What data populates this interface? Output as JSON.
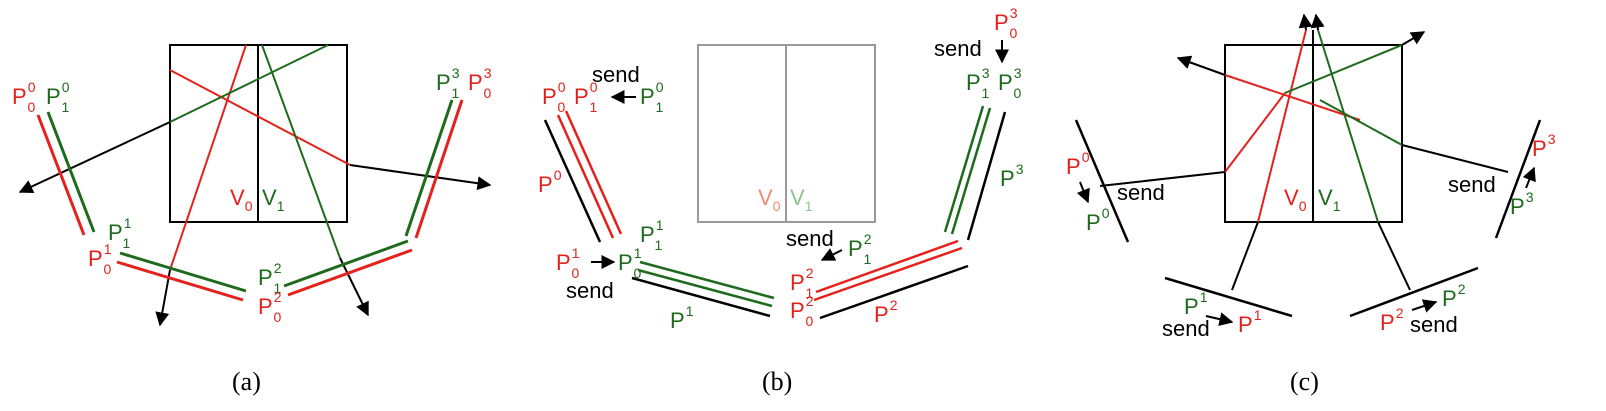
{
  "colors": {
    "red": "#e4211c",
    "green": "#1e6b1e",
    "black": "#000000",
    "gray": "#9a9a9a",
    "light_red": "#f28a74",
    "light_green": "#8ec48e"
  },
  "symbols": {
    "P": "P",
    "V": "V"
  },
  "idx": {
    "0": "0",
    "1": "1",
    "2": "2",
    "3": "3"
  },
  "send": "send",
  "captions": {
    "a": "(a)",
    "b": "(b)",
    "c": "(c)"
  }
}
